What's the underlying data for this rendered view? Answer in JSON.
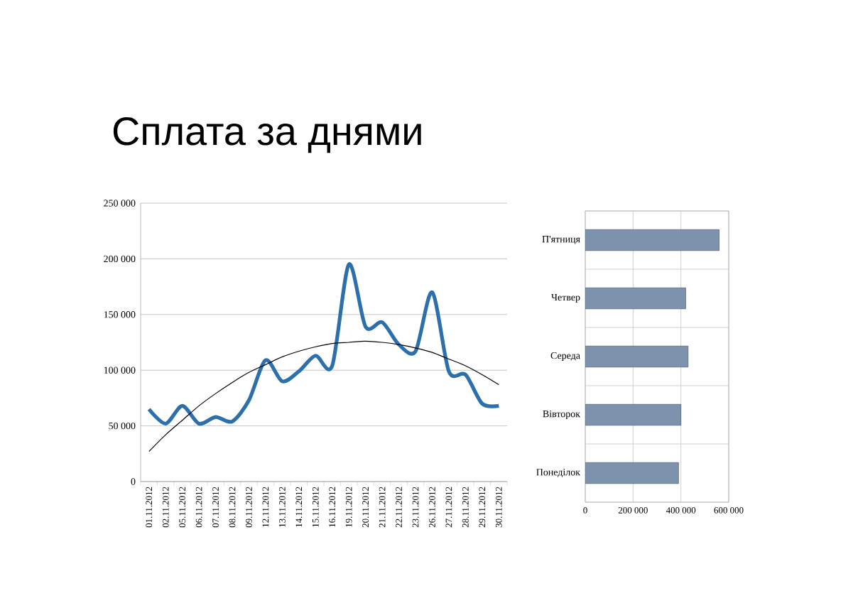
{
  "chart_data": [
    {
      "type": "line",
      "title": "Сплата за днями",
      "categories": [
        "01.11.2012",
        "02.11.2012",
        "05.11.2012",
        "06.11.2012",
        "07.11.2012",
        "08.11.2012",
        "09.11.2012",
        "12.11.2012",
        "13.11.2012",
        "14.11.2012",
        "15.11.2012",
        "16.11.2012",
        "19.11.2012",
        "20.11.2012",
        "21.11.2012",
        "22.11.2012",
        "23.11.2012",
        "26.11.2012",
        "27.11.2012",
        "28.11.2012",
        "29.11.2012",
        "30.11.2012"
      ],
      "series": [
        {
          "color": "#2c6fad",
          "values": [
            65000,
            52000,
            68000,
            52000,
            58000,
            54000,
            73000,
            109000,
            90000,
            99000,
            113000,
            104000,
            195000,
            139000,
            143000,
            123000,
            117000,
            170000,
            99000,
            96000,
            70000,
            68000
          ]
        },
        {
          "type": "line",
          "color": "#000000",
          "values": [
            27000,
            42000,
            55000,
            68000,
            79000,
            89000,
            98000,
            105000,
            112000,
            117000,
            121000,
            124000,
            125000,
            126000,
            125000,
            123000,
            120000,
            116000,
            110000,
            104000,
            96000,
            87000
          ]
        }
      ],
      "ylim": [
        0,
        250000
      ],
      "yticks": [
        0,
        {
          "value": 50000,
          "label": "50 000"
        },
        {
          "value": 100000,
          "label": "100 000"
        },
        {
          "value": 150000,
          "label": "150 000"
        },
        {
          "value": 200000,
          "label": "200 000"
        },
        {
          "value": 250000,
          "label": "250 000"
        }
      ],
      "grid": "y"
    },
    {
      "type": "bar",
      "orientation": "horizontal",
      "categories": [
        "П'ятниця",
        "Четвер",
        "Середа",
        "Вівторок",
        "Понеділок"
      ],
      "values": [
        560000,
        420000,
        430000,
        400000,
        390000
      ],
      "color": "#7d93ad",
      "xlim": [
        0,
        600000
      ],
      "xticks": [
        0,
        {
          "value": 200000,
          "label": "200 000"
        },
        {
          "value": 400000,
          "label": "400 000"
        },
        {
          "value": 600000,
          "label": "600 000"
        }
      ],
      "grid": true
    }
  ]
}
